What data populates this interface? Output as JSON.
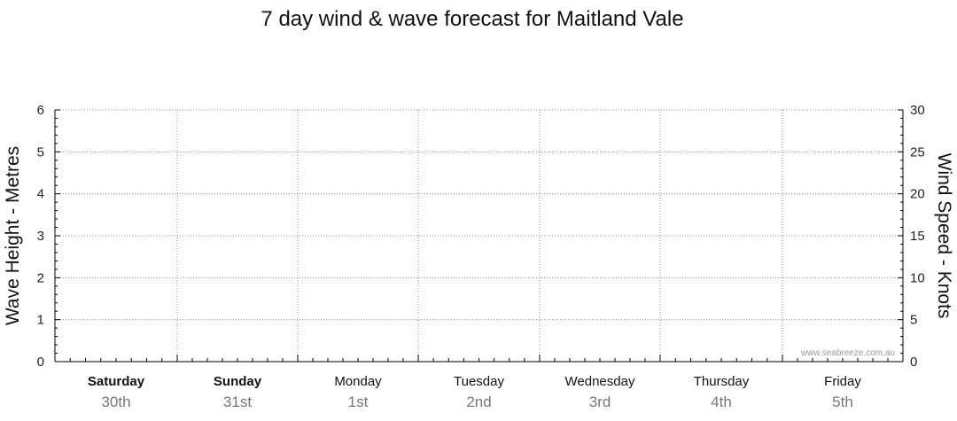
{
  "chart_data": {
    "type": "line",
    "title": "7 day wind & wave forecast for Maitland Vale",
    "ylabel_left": "Wave Height - Metres",
    "ylabel_right": "Wind Speed - Knots",
    "ylim_left": [
      0,
      6
    ],
    "ylim_right": [
      0,
      30
    ],
    "yticks_left": [
      "0",
      "1",
      "2",
      "3",
      "4",
      "5",
      "6"
    ],
    "yticks_right": [
      "0",
      "5",
      "10",
      "15",
      "20",
      "25",
      "30"
    ],
    "grid": true,
    "days": [
      {
        "day": "Saturday",
        "date": "30th",
        "bold": true
      },
      {
        "day": "Sunday",
        "date": "31st",
        "bold": true
      },
      {
        "day": "Monday",
        "date": "1st",
        "bold": false
      },
      {
        "day": "Tuesday",
        "date": "2nd",
        "bold": false
      },
      {
        "day": "Wednesday",
        "date": "3rd",
        "bold": false
      },
      {
        "day": "Thursday",
        "date": "4th",
        "bold": false
      },
      {
        "day": "Friday",
        "date": "5th",
        "bold": false
      }
    ],
    "series": [],
    "watermark": "www.seabreeze.com.au"
  }
}
